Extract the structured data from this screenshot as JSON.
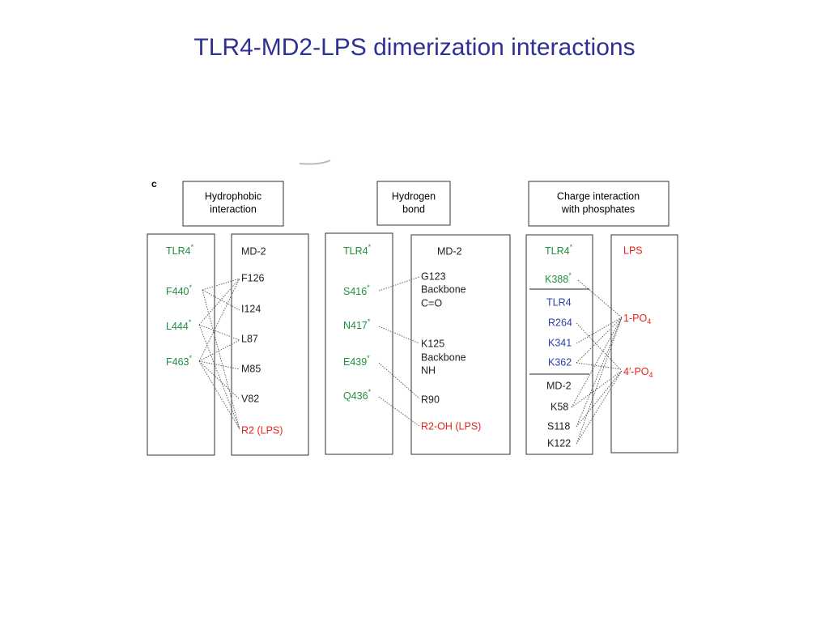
{
  "title": "TLR4-MD2-LPS dimerization interactions",
  "panel_label": "c",
  "panels": [
    {
      "header": [
        "Hydrophobic",
        "interaction"
      ],
      "columns": [
        {
          "items": [
            {
              "text": "TLR4",
              "sup": "*"
            },
            {
              "text": "F440",
              "sup": "*"
            },
            {
              "text": "L444",
              "sup": "*"
            },
            {
              "text": "F463",
              "sup": "*"
            }
          ]
        },
        {
          "items": [
            "MD-2",
            "F126",
            "I124",
            "L87",
            "M85",
            "V82",
            "R2 (LPS)"
          ]
        }
      ]
    },
    {
      "header": [
        "Hydrogen",
        "bond"
      ],
      "columns": [
        {
          "items": [
            {
              "text": "TLR4",
              "sup": "*"
            },
            {
              "text": "S416",
              "sup": "*"
            },
            {
              "text": "N417",
              "sup": "*"
            },
            {
              "text": "E439",
              "sup": "*"
            },
            {
              "text": "Q436",
              "sup": "*"
            }
          ]
        },
        {
          "items": [
            "MD-2",
            "G123",
            "Backbone",
            "C=O",
            "K125",
            "Backbone",
            "NH",
            "R90",
            "R2-OH (LPS)"
          ]
        }
      ]
    },
    {
      "header": [
        "Charge interaction",
        "with phosphates"
      ],
      "columns": [
        {
          "items": [
            {
              "text": "TLR4",
              "sup": "*"
            },
            {
              "text": "K388",
              "sup": "*"
            },
            "TLR4",
            "R264",
            "K341",
            "K362",
            "MD-2",
            "K58",
            "S118",
            "K122"
          ]
        },
        {
          "items": [
            "LPS",
            {
              "text": "1-PO",
              "sub": "4"
            },
            {
              "text": "4′-PO",
              "sub": "4"
            }
          ]
        }
      ]
    }
  ]
}
